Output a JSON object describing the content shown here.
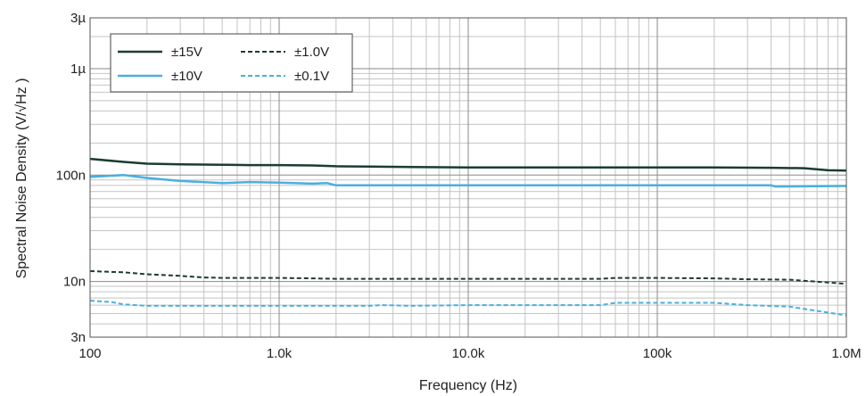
{
  "chart_data": {
    "type": "line",
    "title": "",
    "xlabel": "Frequency (Hz)",
    "ylabel": "Spectral Noise Density (V/√Hz )",
    "x_scale": "log",
    "y_scale": "log",
    "xlim": [
      100,
      1000000
    ],
    "ylim": [
      3e-09,
      3e-06
    ],
    "grid": true,
    "legend_position": "top-left",
    "x_ticks": [
      {
        "value": 100,
        "label": "100"
      },
      {
        "value": 1000,
        "label": "1.0k"
      },
      {
        "value": 10000,
        "label": "10.0k"
      },
      {
        "value": 100000,
        "label": "100k"
      },
      {
        "value": 1000000,
        "label": "1.0M"
      }
    ],
    "y_ticks": [
      {
        "value": 3e-09,
        "label": "3n"
      },
      {
        "value": 1e-08,
        "label": "10n"
      },
      {
        "value": 1e-07,
        "label": "100n"
      },
      {
        "value": 1e-06,
        "label": "1µ"
      },
      {
        "value": 3e-06,
        "label": "3µ"
      }
    ],
    "series": [
      {
        "name": "±15V",
        "color": "#1a3d2e",
        "dash": "solid",
        "x": [
          100,
          150,
          200,
          300,
          500,
          700,
          1000,
          1500,
          2000,
          3000,
          5000,
          10000,
          20000,
          50000,
          100000,
          200000,
          400000,
          600000,
          800000,
          1000000
        ],
        "y": [
          1.42e-07,
          1.33e-07,
          1.28e-07,
          1.26e-07,
          1.25e-07,
          1.24e-07,
          1.24e-07,
          1.23e-07,
          1.21e-07,
          1.2e-07,
          1.19e-07,
          1.18e-07,
          1.18e-07,
          1.18e-07,
          1.18e-07,
          1.18e-07,
          1.17e-07,
          1.16e-07,
          1.11e-07,
          1.1e-07
        ]
      },
      {
        "name": "±10V",
        "color": "#4aafe0",
        "dash": "solid",
        "x": [
          100,
          150,
          200,
          300,
          500,
          700,
          1000,
          1500,
          1800,
          2000,
          5000,
          10000,
          50000,
          100000,
          300000,
          400000,
          420000,
          1000000
        ],
        "y": [
          9.6e-08,
          1e-07,
          9.4e-08,
          8.8e-08,
          8.4e-08,
          8.6e-08,
          8.5e-08,
          8.3e-08,
          8.4e-08,
          8e-08,
          8e-08,
          8e-08,
          8e-08,
          8e-08,
          8e-08,
          8e-08,
          7.8e-08,
          7.9e-08
        ]
      },
      {
        "name": "±1.0V",
        "color": "#1a3d2e",
        "dash": "dashed",
        "x": [
          100,
          150,
          200,
          300,
          400,
          500,
          1000,
          1500,
          2000,
          5000,
          10000,
          20000,
          50000,
          60000,
          100000,
          200000,
          300000,
          500000,
          800000,
          1000000
        ],
        "y": [
          1.25e-08,
          1.22e-08,
          1.17e-08,
          1.13e-08,
          1.09e-08,
          1.08e-08,
          1.08e-08,
          1.07e-08,
          1.06e-08,
          1.06e-08,
          1.06e-08,
          1.06e-08,
          1.06e-08,
          1.08e-08,
          1.08e-08,
          1.07e-08,
          1.05e-08,
          1.04e-08,
          9.8e-09,
          9.5e-09
        ]
      },
      {
        "name": "±0.1V",
        "color": "#4aafe0",
        "dash": "dashed",
        "x": [
          100,
          130,
          150,
          200,
          300,
          500,
          1000,
          2000,
          3000,
          3500,
          5000,
          10000,
          20000,
          50000,
          60000,
          100000,
          200000,
          300000,
          500000,
          800000,
          1000000
        ],
        "y": [
          6.6e-09,
          6.4e-09,
          6.1e-09,
          5.9e-09,
          5.9e-09,
          5.9e-09,
          5.9e-09,
          5.9e-09,
          5.9e-09,
          6e-09,
          5.9e-09,
          6e-09,
          6e-09,
          6e-09,
          6.3e-09,
          6.3e-09,
          6.3e-09,
          6e-09,
          5.8e-09,
          5.1e-09,
          4.8e-09
        ]
      }
    ]
  }
}
